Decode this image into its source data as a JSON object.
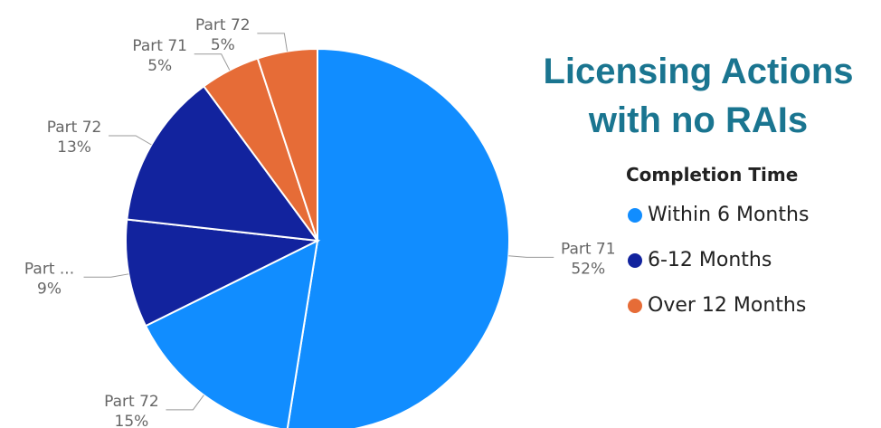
{
  "chart_data": {
    "type": "pie",
    "title": "Licensing Actions with no RAIs",
    "legend_title": "Completion Time",
    "legend": "right",
    "series": [
      {
        "name": "Within 6 Months",
        "color": "#118dff",
        "categories": [
          "Part 71",
          "Part 72"
        ],
        "values": [
          52,
          15
        ],
        "value_labels": [
          "52%",
          "15%"
        ]
      },
      {
        "name": "6-12 Months",
        "color": "#12239e",
        "categories": [
          "Part ...",
          "Part 72"
        ],
        "values": [
          9,
          13
        ],
        "value_labels": [
          "9%",
          "13%"
        ]
      },
      {
        "name": "Over 12 Months",
        "color": "#e66c37",
        "categories": [
          "Part 71",
          "Part 72"
        ],
        "values": [
          5,
          5
        ],
        "value_labels": [
          "5%",
          "5%"
        ]
      }
    ]
  }
}
